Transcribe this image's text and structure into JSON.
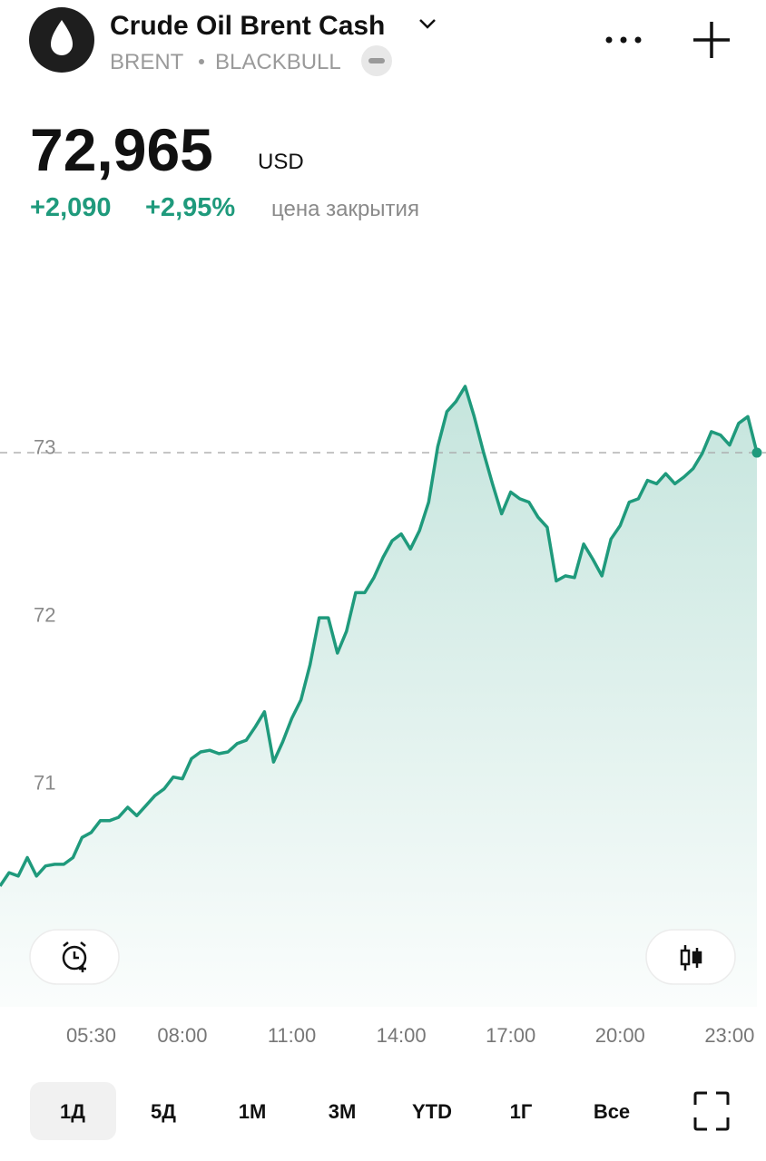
{
  "header": {
    "title": "Crude Oil Brent Cash",
    "symbol": "BRENT",
    "exchange": "BLACKBULL"
  },
  "price": {
    "value": "72,965",
    "currency": "USD",
    "change": "+2,090",
    "change_pct": "+2,95%",
    "note": "цена закрытия"
  },
  "chart_data": {
    "type": "line",
    "color": "#1f9a7c",
    "x": [
      3,
      3.25,
      3.5,
      3.75,
      4,
      4.25,
      4.5,
      4.75,
      5,
      5.25,
      5.5,
      5.75,
      6,
      6.25,
      6.5,
      6.75,
      7,
      7.25,
      7.5,
      7.75,
      8,
      8.25,
      8.5,
      8.75,
      9,
      9.25,
      9.5,
      9.75,
      10,
      10.25,
      10.5,
      10.75,
      11,
      11.25,
      11.5,
      11.75,
      12,
      12.25,
      12.5,
      12.75,
      13,
      13.25,
      13.5,
      13.75,
      14,
      14.25,
      14.5,
      14.75,
      15,
      15.25,
      15.5,
      15.75,
      16,
      16.25,
      16.5,
      16.75,
      17,
      17.25,
      17.5,
      17.75,
      18,
      18.25,
      18.5,
      18.75,
      19,
      19.25,
      19.5,
      19.75,
      20,
      20.25,
      20.5,
      20.75,
      21,
      21.25,
      21.5,
      21.75,
      22,
      22.25,
      22.5,
      22.75,
      23,
      23.25,
      23.5,
      23.75
    ],
    "values": [
      70.38,
      70.46,
      70.44,
      70.55,
      70.44,
      70.5,
      70.51,
      70.51,
      70.55,
      70.67,
      70.7,
      70.77,
      70.77,
      70.79,
      70.85,
      70.8,
      70.86,
      70.92,
      70.96,
      71.03,
      71.02,
      71.14,
      71.18,
      71.19,
      71.17,
      71.18,
      71.23,
      71.25,
      71.33,
      71.42,
      71.12,
      71.24,
      71.38,
      71.49,
      71.7,
      71.98,
      71.98,
      71.77,
      71.9,
      72.13,
      72.13,
      72.22,
      72.34,
      72.44,
      72.48,
      72.39,
      72.5,
      72.67,
      73.0,
      73.21,
      73.27,
      73.36,
      73.18,
      72.97,
      72.78,
      72.6,
      72.73,
      72.69,
      72.67,
      72.58,
      72.52,
      72.2,
      72.23,
      72.22,
      72.42,
      72.33,
      72.23,
      72.45,
      72.53,
      72.67,
      72.69,
      72.8,
      72.78,
      72.84,
      72.78,
      72.82,
      72.87,
      72.96,
      73.09,
      73.07,
      73.01,
      73.14,
      73.18,
      72.965
    ],
    "xlim": [
      3,
      23.75
    ],
    "ylim": [
      69.66,
      74.15
    ],
    "xticks": [
      {
        "value": 5.5,
        "label": "05:30"
      },
      {
        "value": 8,
        "label": "08:00"
      },
      {
        "value": 11,
        "label": "11:00"
      },
      {
        "value": 14,
        "label": "14:00"
      },
      {
        "value": 17,
        "label": "17:00"
      },
      {
        "value": 20,
        "label": "20:00"
      },
      {
        "value": 23,
        "label": "23:00"
      }
    ],
    "yticks": [
      71,
      72,
      73
    ]
  },
  "ranges": [
    "1Д",
    "5Д",
    "1М",
    "3М",
    "YTD",
    "1Г",
    "Все"
  ],
  "selected_range": 0
}
